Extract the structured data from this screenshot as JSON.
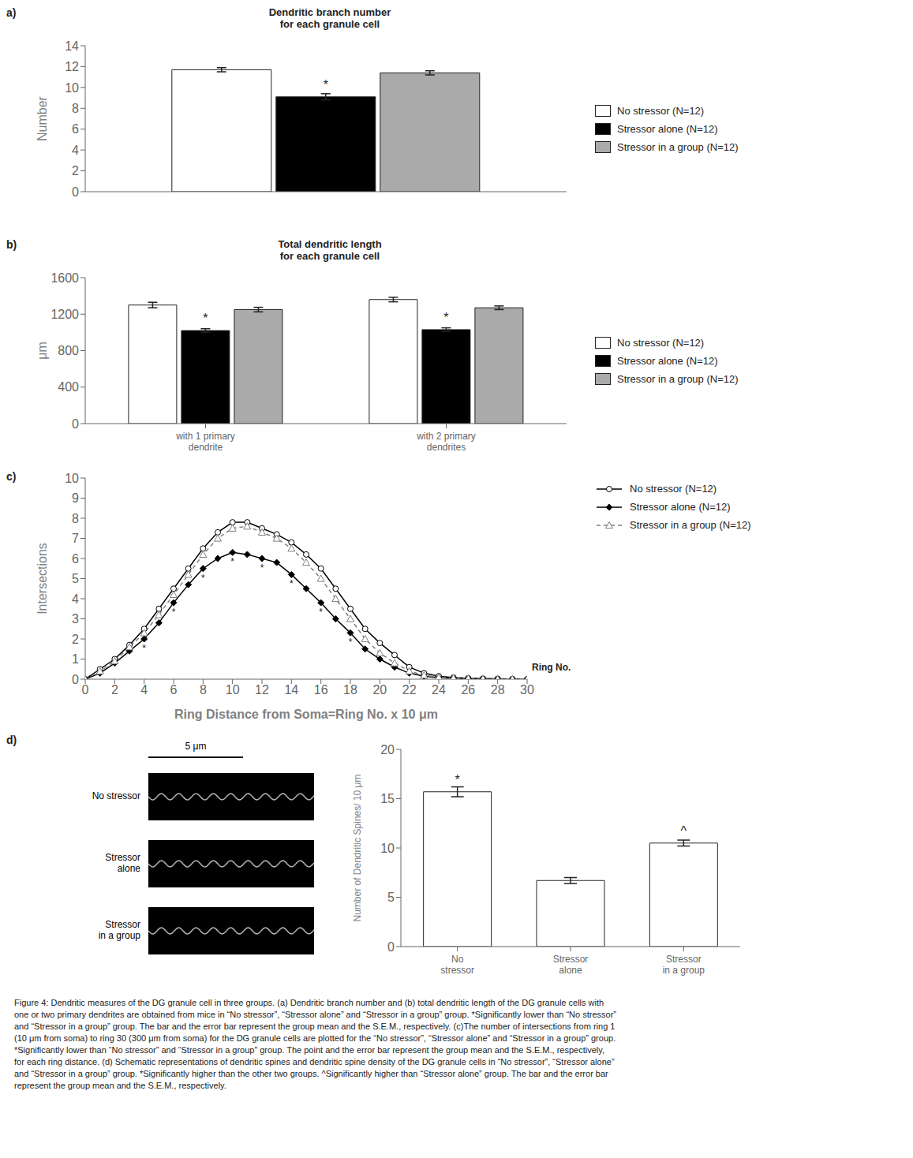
{
  "chart_data": [
    {
      "type": "bar",
      "title": "Dendritic branch number\nfor each granule cell",
      "ylabel": "Number",
      "categories": [
        null
      ],
      "series": [
        {
          "name": "No stressor (N=12)",
          "color": "white",
          "values": [
            11.7
          ],
          "errors": [
            0.2
          ]
        },
        {
          "name": "Stressor alone (N=12)",
          "color": "black",
          "values": [
            9.1
          ],
          "errors": [
            0.3
          ]
        },
        {
          "name": "Stressor in a group (N=12)",
          "color": "#aaaaaa",
          "values": [
            11.4
          ],
          "errors": [
            0.2
          ]
        }
      ],
      "ylim": [
        0,
        14
      ],
      "yticks": [
        0,
        2,
        4,
        6,
        8,
        10,
        12,
        14
      ],
      "legend": "right",
      "annotations": [
        {
          "text": "a)"
        },
        {
          "text": "*",
          "series": 1,
          "index": 0
        }
      ]
    },
    {
      "type": "bar",
      "title": "Total dendritic length\nfor each granule cell",
      "ylabel": "μm",
      "categories": [
        "with 1 primary\ndendrite",
        "with 2 primary\ndendrites"
      ],
      "series": [
        {
          "name": "No stressor (N=12)",
          "color": "white",
          "values": [
            1300,
            1360
          ],
          "errors": [
            30,
            25
          ]
        },
        {
          "name": "Stressor alone (N=12)",
          "color": "black",
          "values": [
            1020,
            1030
          ],
          "errors": [
            20,
            20
          ]
        },
        {
          "name": "Stressor in a group (N=12)",
          "color": "#aaaaaa",
          "values": [
            1250,
            1270
          ],
          "errors": [
            25,
            20
          ]
        }
      ],
      "ylim": [
        0,
        1600
      ],
      "yticks": [
        0,
        400,
        800,
        1200,
        1600
      ],
      "legend": "right",
      "annotations": [
        {
          "text": "b)"
        },
        {
          "text": "*",
          "series": 1,
          "index": 0
        },
        {
          "text": "*",
          "series": 1,
          "index": 1
        }
      ]
    },
    {
      "type": "line",
      "xlabel": "Ring Distance from Soma=Ring No. x 10 μm",
      "ylabel": "Intersections",
      "x": [
        0,
        1,
        2,
        3,
        4,
        5,
        6,
        7,
        8,
        9,
        10,
        11,
        12,
        13,
        14,
        15,
        16,
        17,
        18,
        19,
        20,
        21,
        22,
        23,
        24,
        25,
        26,
        27,
        28,
        29,
        30
      ],
      "series": [
        {
          "name": "No stressor (N=12)",
          "color": "black",
          "marker": "circle",
          "line_style": "solid",
          "values": [
            0,
            0.5,
            1.0,
            1.7,
            2.5,
            3.5,
            4.5,
            5.5,
            6.5,
            7.3,
            7.8,
            7.8,
            7.5,
            7.2,
            6.8,
            6.2,
            5.5,
            4.5,
            3.5,
            2.5,
            1.8,
            1.2,
            0.6,
            0.3,
            0.15,
            0.08,
            0.05,
            0.03,
            0.02,
            0.01,
            0.0
          ]
        },
        {
          "name": "Stressor alone (N=12)",
          "color": "black",
          "marker": "diamond",
          "line_style": "solid",
          "values": [
            0,
            0.3,
            0.8,
            1.4,
            2.0,
            2.8,
            3.8,
            4.7,
            5.5,
            6.0,
            6.3,
            6.2,
            6.0,
            5.8,
            5.2,
            4.5,
            3.8,
            3.0,
            2.3,
            1.5,
            1.0,
            0.6,
            0.3,
            0.15,
            0.08,
            0.05,
            0.03,
            0.02,
            0.01,
            0.0,
            0.0
          ]
        },
        {
          "name": "Stressor in a group (N=12)",
          "color": "gray",
          "marker": "triangle",
          "line_style": "dashed",
          "values": [
            0,
            0.4,
            0.9,
            1.6,
            2.3,
            3.2,
            4.2,
            5.2,
            6.2,
            7.0,
            7.5,
            7.6,
            7.3,
            7.0,
            6.5,
            5.8,
            5.0,
            4.0,
            3.0,
            2.0,
            1.3,
            0.8,
            0.4,
            0.2,
            0.1,
            0.06,
            0.04,
            0.02,
            0.01,
            0.01,
            0.0
          ]
        }
      ],
      "xlim": [
        0,
        30
      ],
      "ylim": [
        0,
        10
      ],
      "xticks": [
        0,
        2,
        4,
        6,
        8,
        10,
        12,
        14,
        16,
        18,
        20,
        22,
        24,
        26,
        28,
        30
      ],
      "yticks": [
        0,
        1,
        2,
        3,
        4,
        5,
        6,
        7,
        8,
        9,
        10
      ],
      "legend": "right",
      "annotations": [
        {
          "text": "c)"
        },
        {
          "text": "Ring No."
        },
        {
          "text": "*",
          "series": 1,
          "x": 4
        },
        {
          "text": "*",
          "series": 1,
          "x": 6
        },
        {
          "text": "*",
          "series": 1,
          "x": 8
        },
        {
          "text": "*",
          "series": 1,
          "x": 10
        },
        {
          "text": "*",
          "series": 1,
          "x": 12
        },
        {
          "text": "*",
          "series": 1,
          "x": 14
        },
        {
          "text": "*",
          "series": 1,
          "x": 16
        },
        {
          "text": "*",
          "series": 1,
          "x": 18
        }
      ]
    },
    {
      "type": "bar",
      "ylabel": "Number of Dendritic Spines/ 10 μm",
      "categories": [
        "No\nstressor",
        "Stressor\nalone",
        "Stressor\nin a group"
      ],
      "values": [
        15.7,
        6.7,
        10.5
      ],
      "errors": [
        0.5,
        0.3,
        0.3
      ],
      "colors": [
        "white",
        "white",
        "white"
      ],
      "ylim": [
        0,
        20
      ],
      "yticks": [
        0,
        5,
        10,
        15,
        20
      ],
      "annotations": [
        {
          "text": "d)"
        },
        {
          "text": "*",
          "index": 0
        },
        {
          "text": "^",
          "index": 2
        },
        {
          "text": "5 μm"
        },
        {
          "text": "No stressor"
        },
        {
          "text": "Stressor\nalone"
        },
        {
          "text": "Stressor\nin a group"
        },
        {
          "text": "Figure 4: Dendritic measures of the DG granule cell in three groups. (a) Dendritic branch number and (b) total dendritic length of the DG granule cells with\none or two primary dendrites are obtained from mice in “No stressor”, “Stressor alone” and “Stressor in a group” group. *Significantly lower than “No stressor”\nand “Stressor in a group” group. The bar and the error bar represent the group mean and the S.E.M., respectively. (c)The number of intersections from ring 1\n(10 μm from soma) to ring 30 (300 μm from soma) for the DG granule cells are plotted for the “No stressor”, “Stressor alone” and “Stressor in a group” group.\n*Significantly lower than “No stressor” and “Stressor in a group” group. The point and the error bar represent the group mean and the S.E.M., respectively,\nfor each ring distance. (d) Schematic representations of dendritic spines and dendritic spine density of the DG granule cells in “No stressor”, “Stressor alone”\nand “Stressor in a group” group. *Significantly higher than the other two groups. ^Significantly higher than “Stressor alone” group. The bar and the error bar\nrepresent the group mean and the S.E.M., respectively."
        }
      ]
    }
  ]
}
